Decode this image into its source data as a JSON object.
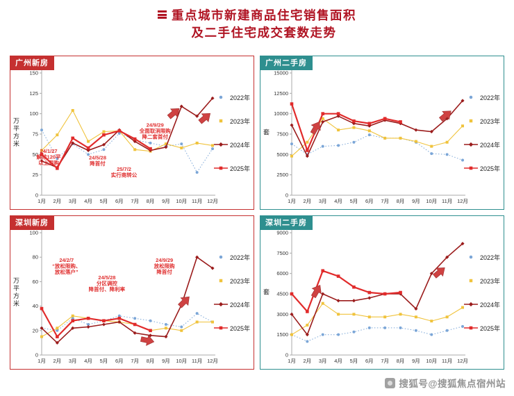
{
  "page": {
    "title_line1": "重点城市新建商品住宅销售面积",
    "title_line2": "及二手住宅成交套数走势",
    "watermark": "搜狐号@搜狐焦点宿州站"
  },
  "colors": {
    "title": "#b01423",
    "new_home_accent": "#c53030",
    "resale_accent": "#2e8f8f",
    "annotation": "#e03131",
    "arrow": "#cf4242",
    "axis": "#aaaaaa",
    "tick_text": "#333333"
  },
  "chart_data": [
    {
      "type": "line",
      "title": "广州新房",
      "theme": "new_home",
      "ylabel": "万平方米",
      "ylim": [
        0,
        150
      ],
      "yticks": [
        0,
        25,
        50,
        75,
        100,
        125,
        150
      ],
      "categories": [
        "1月",
        "2月",
        "3月",
        "4月",
        "5月",
        "6月",
        "7月",
        "8月",
        "9月",
        "10月",
        "11月",
        "12月"
      ],
      "series": [
        {
          "name": "2022年",
          "color": "#7ba6d7",
          "marker": "circle",
          "dash": "1.5,2.5",
          "width": 1,
          "msize": 4,
          "legend_line": false,
          "values": [
            80,
            45,
            63,
            50,
            56,
            76,
            68,
            64,
            60,
            63,
            28,
            57
          ]
        },
        {
          "name": "2023年",
          "color": "#f0c33c",
          "marker": "square",
          "dash": null,
          "width": 1.1,
          "msize": 4,
          "legend_line": false,
          "values": [
            55,
            74,
            104,
            66,
            78,
            79,
            56,
            54,
            63,
            58,
            64,
            61
          ]
        },
        {
          "name": "2024年",
          "color": "#9b1c1c",
          "marker": "diamond",
          "dash": null,
          "width": 1.6,
          "msize": 3.6,
          "legend_line": true,
          "values": [
            42,
            34,
            64,
            55,
            62,
            80,
            66,
            55,
            59,
            109,
            97,
            119
          ]
        },
        {
          "name": "2025年",
          "color": "#e12b2b",
          "marker": "square",
          "dash": null,
          "width": 2.2,
          "msize": 4.6,
          "legend_line": true,
          "values": [
            50,
            33,
            70,
            58,
            74,
            79,
            69,
            57,
            null,
            null,
            null,
            null
          ]
        }
      ],
      "annotations": [
        {
          "x": 0.45,
          "y": 52,
          "lines": [
            "24/1/27",
            "解除120平",
            "以上限购"
          ]
        },
        {
          "x": 3.6,
          "y": 44,
          "lines": [
            "24/5/28",
            "降首付"
          ]
        },
        {
          "x": 5.3,
          "y": 30,
          "lines": [
            "25/7/2",
            "实行商转公"
          ]
        },
        {
          "x": 7.3,
          "y": 84,
          "lines": [
            "24/9/29",
            "全面取消限购",
            "降二套首付"
          ]
        }
      ],
      "arrows": [
        {
          "x": 8.2,
          "y": 96,
          "rot": -40
        },
        {
          "x": 10.2,
          "y": 90,
          "rot": -40
        }
      ]
    },
    {
      "type": "line",
      "title": "广州二手房",
      "theme": "resale",
      "ylabel": "套",
      "ylim": [
        0,
        15000
      ],
      "yticks": [
        0,
        2500,
        5000,
        7500,
        10000,
        12500,
        15000
      ],
      "categories": [
        "1月",
        "2月",
        "3月",
        "4月",
        "5月",
        "6月",
        "7月",
        "8月",
        "9月",
        "10月",
        "11月",
        "12月"
      ],
      "series": [
        {
          "name": "2022年",
          "color": "#7ba6d7",
          "marker": "circle",
          "dash": "1.5,2.5",
          "width": 1,
          "msize": 4,
          "legend_line": false,
          "values": [
            6300,
            5000,
            6000,
            6100,
            6500,
            7400,
            7000,
            7000,
            6500,
            5100,
            5000,
            4300
          ]
        },
        {
          "name": "2023年",
          "color": "#f0c33c",
          "marker": "square",
          "dash": null,
          "width": 1.1,
          "msize": 4,
          "legend_line": false,
          "values": [
            4800,
            6500,
            9400,
            8000,
            8300,
            7900,
            7000,
            7000,
            6600,
            6000,
            6500,
            8500
          ]
        },
        {
          "name": "2024年",
          "color": "#9b1c1c",
          "marker": "diamond",
          "dash": null,
          "width": 1.6,
          "msize": 3.6,
          "legend_line": true,
          "values": [
            8600,
            4800,
            9000,
            9700,
            8800,
            8500,
            9200,
            8800,
            8000,
            7800,
            9400,
            11600
          ]
        },
        {
          "name": "2025年",
          "color": "#e12b2b",
          "marker": "square",
          "dash": null,
          "width": 2.2,
          "msize": 4.6,
          "legend_line": true,
          "values": [
            11200,
            5500,
            10000,
            10000,
            9100,
            8800,
            9400,
            9000,
            null,
            null,
            null,
            null
          ]
        }
      ],
      "annotations": [],
      "arrows": [
        {
          "x": 1.35,
          "y": 7600,
          "rot": -60
        },
        {
          "x": 9.6,
          "y": 9300,
          "rot": -40
        }
      ]
    },
    {
      "type": "line",
      "title": "深圳新房",
      "theme": "new_home",
      "ylabel": "万平方米",
      "ylim": [
        0,
        100
      ],
      "yticks": [
        0,
        20,
        40,
        60,
        80,
        100
      ],
      "categories": [
        "1月",
        "2月",
        "3月",
        "4月",
        "5月",
        "6月",
        "7月",
        "8月",
        "9月",
        "10月",
        "11月",
        "12月"
      ],
      "series": [
        {
          "name": "2022年",
          "color": "#7ba6d7",
          "marker": "circle",
          "dash": "1.5,2.5",
          "width": 1,
          "msize": 4,
          "legend_line": false,
          "values": [
            22,
            20,
            30,
            25,
            28,
            32,
            30,
            28,
            25,
            23,
            34,
            27
          ]
        },
        {
          "name": "2023年",
          "color": "#f0c33c",
          "marker": "square",
          "dash": null,
          "width": 1.1,
          "msize": 4,
          "legend_line": false,
          "values": [
            15,
            22,
            32,
            30,
            28,
            27,
            25,
            20,
            22,
            20,
            27,
            27
          ]
        },
        {
          "name": "2024年",
          "color": "#9b1c1c",
          "marker": "diamond",
          "dash": null,
          "width": 1.6,
          "msize": 3.6,
          "legend_line": true,
          "values": [
            22,
            10,
            22,
            23,
            25,
            27,
            18,
            16,
            15,
            41,
            80,
            71
          ]
        },
        {
          "name": "2025年",
          "color": "#e12b2b",
          "marker": "square",
          "dash": null,
          "width": 2.2,
          "msize": 4.6,
          "legend_line": true,
          "values": [
            38,
            15,
            28,
            30,
            28,
            30,
            25,
            20,
            null,
            null,
            null,
            null
          ]
        }
      ],
      "annotations": [
        {
          "x": 1.6,
          "y": 76,
          "lines": [
            "24/2/7",
            "“放松限购、",
            "放松落户”"
          ]
        },
        {
          "x": 4.2,
          "y": 62,
          "lines": [
            "24/5/28",
            "分区调控",
            "降首付、降利率"
          ]
        },
        {
          "x": 7.9,
          "y": 76,
          "lines": [
            "24/9/29",
            "放松限购",
            "降首付"
          ]
        }
      ],
      "arrows": [
        {
          "x": 8.9,
          "y": 40,
          "rot": -45
        },
        {
          "x": 6.4,
          "y": 13,
          "rot": 12
        }
      ]
    },
    {
      "type": "line",
      "title": "深圳二手房",
      "theme": "resale",
      "ylabel": "套",
      "ylim": [
        0,
        9000
      ],
      "yticks": [
        0,
        1500,
        3000,
        4500,
        6000,
        7500,
        9000
      ],
      "categories": [
        "1月",
        "2月",
        "3月",
        "4月",
        "5月",
        "6月",
        "7月",
        "8月",
        "9月",
        "10月",
        "11月",
        "12月"
      ],
      "series": [
        {
          "name": "2022年",
          "color": "#7ba6d7",
          "marker": "circle",
          "dash": "1.5,2.5",
          "width": 1,
          "msize": 4,
          "legend_line": false,
          "values": [
            1500,
            1000,
            1500,
            1500,
            1700,
            2000,
            2000,
            2000,
            1800,
            1500,
            1800,
            2100
          ]
        },
        {
          "name": "2023年",
          "color": "#f0c33c",
          "marker": "square",
          "dash": null,
          "width": 1.1,
          "msize": 4,
          "legend_line": false,
          "values": [
            1500,
            2200,
            3800,
            3000,
            3000,
            2800,
            2800,
            3000,
            2800,
            2500,
            2800,
            3500
          ]
        },
        {
          "name": "2024年",
          "color": "#9b1c1c",
          "marker": "diamond",
          "dash": null,
          "width": 1.6,
          "msize": 3.6,
          "legend_line": true,
          "values": [
            3000,
            1500,
            4500,
            4000,
            4000,
            4200,
            4500,
            4500,
            3400,
            6000,
            7200,
            8200
          ]
        },
        {
          "name": "2025年",
          "color": "#e12b2b",
          "marker": "square",
          "dash": null,
          "width": 2.2,
          "msize": 4.6,
          "legend_line": true,
          "values": [
            4500,
            3200,
            6200,
            5800,
            5000,
            4600,
            4500,
            4600,
            null,
            null,
            null,
            null
          ]
        }
      ],
      "annotations": [],
      "arrows": [
        {
          "x": 1.4,
          "y": 4300,
          "rot": -60
        },
        {
          "x": 9.2,
          "y": 5800,
          "rot": -40
        }
      ]
    }
  ]
}
